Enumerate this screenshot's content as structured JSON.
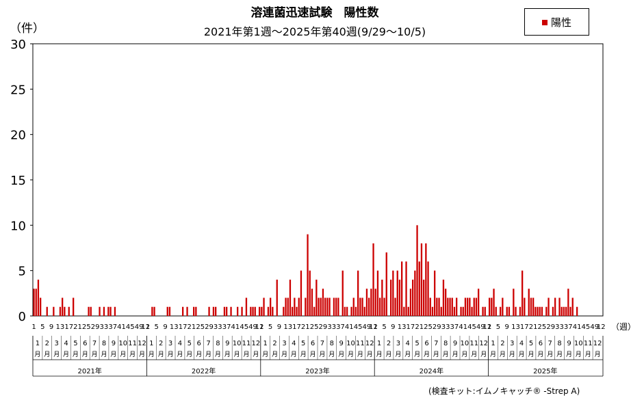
{
  "chart_data": {
    "type": "bar",
    "title": "溶連菌迅速試験　陽性数",
    "subtitle": "2021年第1週～2025年第40週(9/29～10/5)",
    "ylabel": "（件）",
    "xunit": "（週）",
    "ylim": [
      0,
      30
    ],
    "yticks": [
      0,
      5,
      10,
      15,
      20,
      25,
      30
    ],
    "grid": false,
    "legend_position": "top-right",
    "colors": {
      "series": "#cc0000"
    },
    "series": [
      {
        "name": "陽性",
        "values": {
          "2021": [
            3,
            3,
            4,
            2,
            0,
            0,
            1,
            0,
            0,
            1,
            0,
            0,
            1,
            2,
            1,
            0,
            1,
            0,
            2,
            0,
            0,
            0,
            0,
            0,
            0,
            1,
            1,
            0,
            0,
            0,
            1,
            0,
            1,
            0,
            1,
            1,
            0,
            1,
            0,
            0,
            0,
            0,
            0,
            0,
            0,
            0,
            0,
            0,
            0,
            0,
            0,
            0
          ],
          "2022": [
            0,
            0,
            1,
            1,
            0,
            0,
            0,
            0,
            0,
            1,
            1,
            0,
            0,
            0,
            0,
            0,
            1,
            0,
            1,
            0,
            0,
            1,
            1,
            0,
            0,
            0,
            0,
            0,
            1,
            0,
            1,
            1,
            0,
            0,
            0,
            1,
            1,
            0,
            1,
            0,
            0,
            1,
            0,
            1,
            0,
            2,
            0,
            1,
            1,
            1,
            0,
            1
          ],
          "2023": [
            1,
            2,
            0,
            1,
            2,
            1,
            0,
            4,
            0,
            0,
            1,
            2,
            2,
            4,
            1,
            2,
            1,
            2,
            5,
            0,
            2,
            9,
            5,
            3,
            1,
            4,
            2,
            2,
            3,
            2,
            2,
            2,
            0,
            2,
            2,
            2,
            0,
            5,
            1,
            1,
            0,
            1,
            2,
            1,
            5,
            2,
            2,
            1,
            3,
            2,
            3,
            8
          ],
          "2024": [
            3,
            5,
            2,
            4,
            2,
            7,
            0,
            4,
            5,
            2,
            5,
            4,
            6,
            1,
            6,
            1,
            3,
            4,
            5,
            10,
            6,
            8,
            4,
            8,
            6,
            2,
            1,
            5,
            2,
            2,
            1,
            4,
            3,
            2,
            2,
            2,
            1,
            2,
            0,
            1,
            1,
            2,
            2,
            2,
            1,
            2,
            2,
            3,
            0,
            1,
            1,
            0
          ],
          "2025": [
            2,
            2,
            3,
            1,
            0,
            1,
            2,
            0,
            1,
            1,
            0,
            3,
            1,
            0,
            1,
            5,
            2,
            0,
            3,
            2,
            2,
            1,
            1,
            1,
            1,
            0,
            1,
            2,
            0,
            1,
            2,
            0,
            2,
            1,
            1,
            1,
            3,
            1,
            2,
            0,
            1
          ]
        }
      }
    ],
    "week_tick_labels": [
      "1",
      "5",
      "9",
      "13",
      "17",
      "21",
      "25",
      "29",
      "33",
      "37",
      "41",
      "45",
      "49"
    ],
    "month_labels": [
      "1月",
      "2月",
      "3月",
      "4月",
      "5月",
      "6月",
      "7月",
      "8月",
      "9月",
      "10月",
      "11月",
      "12月"
    ],
    "last_week_tick_label": "12",
    "years": [
      "2021年",
      "2022年",
      "2023年",
      "2024年",
      "2025年"
    ]
  },
  "legend": {
    "label": "陽性"
  },
  "note": "(検査キット:イムノキャッチ® -Strep A)"
}
